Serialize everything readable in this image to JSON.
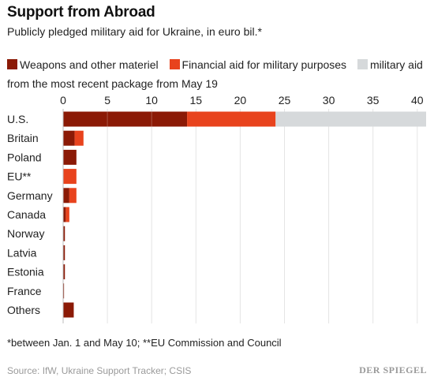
{
  "header": {
    "title": "Support from Abroad",
    "subtitle": "Publicly pledged military aid for Ukraine, in euro bil.*"
  },
  "chart_data": {
    "type": "bar",
    "orientation": "horizontal",
    "stacked": true,
    "categories": [
      "U.S.",
      "Britain",
      "Poland",
      "EU**",
      "Germany",
      "Canada",
      "Norway",
      "Latvia",
      "Estonia",
      "France",
      "Others"
    ],
    "series": [
      {
        "name": "Weapons and other materiel",
        "color": "#8b1a06",
        "values": [
          14.0,
          1.3,
          1.5,
          0.0,
          0.7,
          0.3,
          0.2,
          0.2,
          0.2,
          0.1,
          1.2
        ]
      },
      {
        "name": "Financial aid for military purposes",
        "color": "#e8431d",
        "values": [
          10.0,
          1.0,
          0.0,
          1.5,
          0.8,
          0.4,
          0.0,
          0.0,
          0.0,
          0.0,
          0.0
        ]
      },
      {
        "name": "military aid from the most recent package from May 19",
        "color": "#d6d9db",
        "values": [
          17.0,
          0,
          0,
          0,
          0,
          0,
          0,
          0,
          0,
          0,
          0
        ]
      }
    ],
    "xlim": [
      0,
      41
    ],
    "xticks": [
      0,
      5,
      10,
      15,
      20,
      25,
      30,
      35,
      40
    ],
    "x_axis_position": "top",
    "legend_position": "top",
    "grid": true
  },
  "footer": {
    "footnote": "*between Jan. 1 and May 10; **EU Commission and Council",
    "source": "Source: IfW, Ukraine Support Tracker; CSIS",
    "logo": "DER SPIEGEL"
  }
}
